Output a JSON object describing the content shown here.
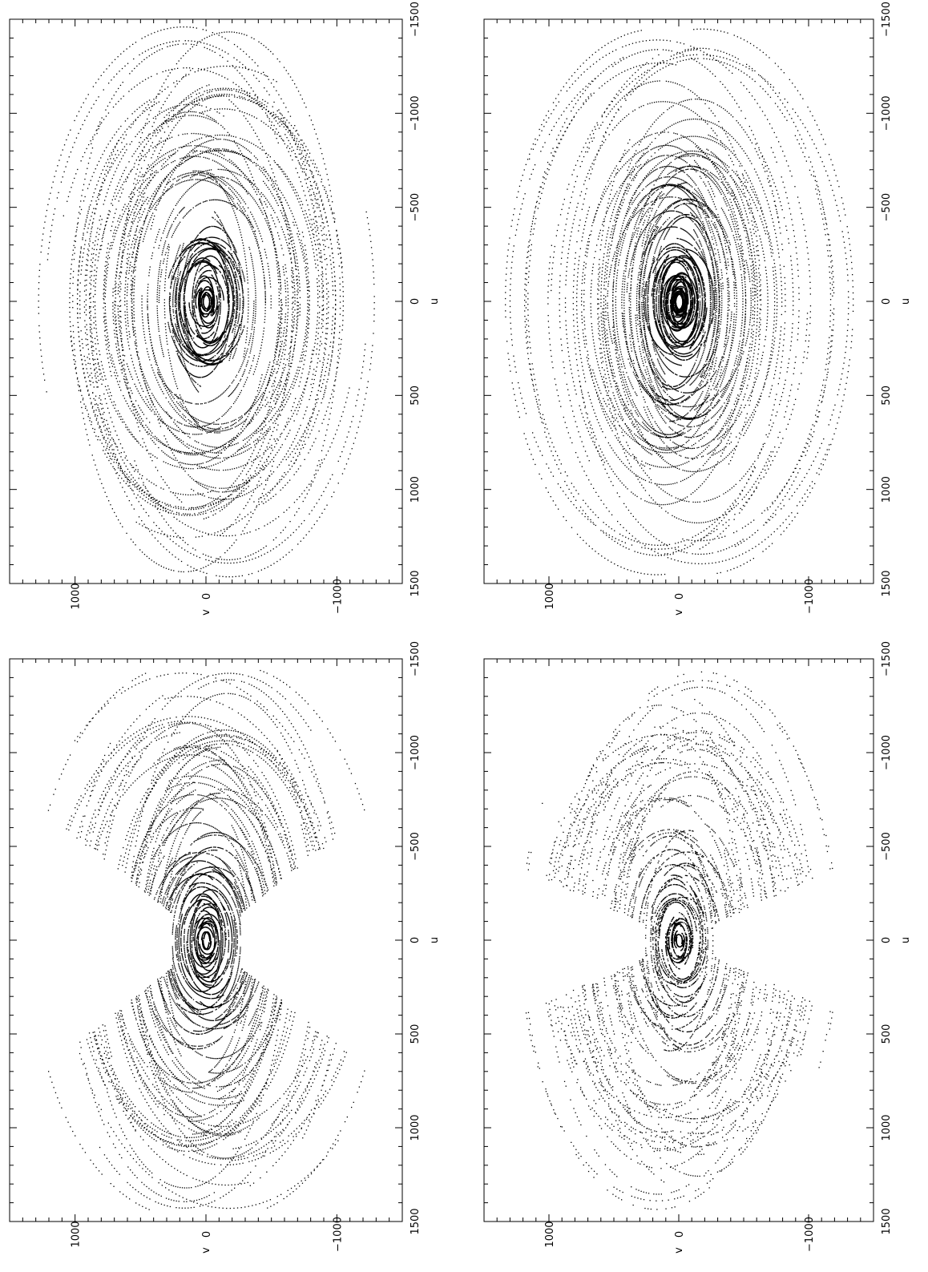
{
  "figure": {
    "orientation": "rotated 90 degrees counter-clockwise"
  },
  "chart_data": [
    {
      "type": "scatter",
      "name": "uv-coverage-top-left",
      "pattern": "full",
      "xlabel": "u",
      "ylabel": "v",
      "xlim": [
        -1500,
        1500
      ],
      "ylim": [
        -1500,
        1500
      ],
      "x_ticks": [
        -1500,
        -1000,
        -500,
        0,
        500,
        1000,
        1500
      ],
      "x_tick_labels": [
        "-1500",
        "-1000",
        "-500",
        "0",
        "500",
        "1000",
        "1500"
      ],
      "y_ticks": [
        -1000,
        0,
        1000
      ],
      "y_tick_labels": [
        "-1000",
        "0",
        "1000"
      ],
      "grid": false,
      "marker_color": "#000000"
    },
    {
      "type": "scatter",
      "name": "uv-coverage-top-right",
      "pattern": "full-dense",
      "xlabel": "u",
      "ylabel": "v",
      "xlim": [
        -1500,
        1500
      ],
      "ylim": [
        -1500,
        1500
      ],
      "x_ticks": [
        -1500,
        -1000,
        -500,
        0,
        500,
        1000,
        1500
      ],
      "x_tick_labels": [
        "-1500",
        "-1000",
        "-500",
        "0",
        "500",
        "1000",
        "1500"
      ],
      "y_ticks": [
        -1000,
        0,
        1000
      ],
      "y_tick_labels": [
        "-1000",
        "0",
        "1000"
      ],
      "grid": false,
      "marker_color": "#000000"
    },
    {
      "type": "scatter",
      "name": "uv-coverage-bottom-left",
      "pattern": "hourglass-wide",
      "xlabel": "u",
      "ylabel": "v",
      "xlim": [
        -1500,
        1500
      ],
      "ylim": [
        -1500,
        1500
      ],
      "x_ticks": [
        -1500,
        -1000,
        -500,
        0,
        500,
        1000,
        1500
      ],
      "x_tick_labels": [
        "-1500",
        "-1000",
        "-500",
        "0",
        "500",
        "1000",
        "1500"
      ],
      "y_ticks": [
        -1000,
        0,
        1000
      ],
      "y_tick_labels": [
        "-1000",
        "0",
        "1000"
      ],
      "grid": false,
      "marker_color": "#000000"
    },
    {
      "type": "scatter",
      "name": "uv-coverage-bottom-right",
      "pattern": "hourglass-narrow",
      "xlabel": "u",
      "ylabel": "v",
      "xlim": [
        -1500,
        1500
      ],
      "ylim": [
        -1500,
        1500
      ],
      "x_ticks": [
        -1500,
        -1000,
        -500,
        0,
        500,
        1000,
        1500
      ],
      "x_tick_labels": [
        "-1500",
        "-1000",
        "-500",
        "0",
        "500",
        "1000",
        "1500"
      ],
      "y_ticks": [
        -1000,
        0,
        1000
      ],
      "y_tick_labels": [
        "-1000",
        "0",
        "1000"
      ],
      "grid": false,
      "marker_color": "#000000"
    }
  ]
}
